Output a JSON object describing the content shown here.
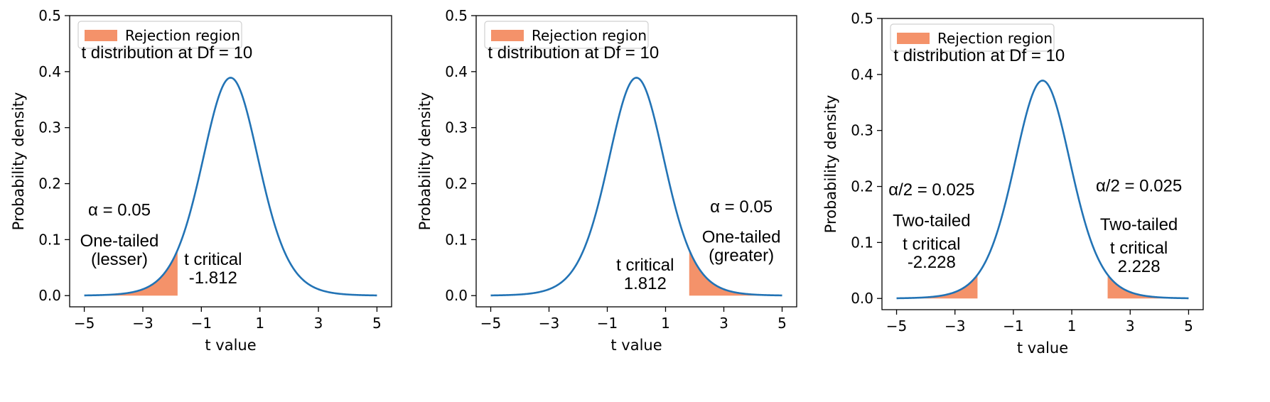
{
  "chart_data": [
    {
      "type": "area",
      "xlabel": "t value",
      "ylabel": "Probability density",
      "xlim": [
        -5.5,
        5.5
      ],
      "ylim": [
        -0.02,
        0.5
      ],
      "xticks": [
        -5,
        -3,
        -1,
        1,
        3,
        5
      ],
      "xtick_labels": [
        "−5",
        "−3",
        "−1",
        "1",
        "3",
        "5"
      ],
      "yticks": [
        0.0,
        0.1,
        0.2,
        0.3,
        0.4,
        0.5
      ],
      "ytick_labels": [
        "0.0",
        "0.1",
        "0.2",
        "0.3",
        "0.4",
        "0.5"
      ],
      "grid": false,
      "legend": {
        "placement": "top-left",
        "entries": [
          {
            "label": "Rejection region",
            "color": "#f4926a"
          }
        ]
      },
      "series": [
        {
          "distribution": "t",
          "df": 10,
          "x_range": [
            -5,
            5
          ],
          "color": "#2273b5"
        }
      ],
      "shaded": [
        {
          "from": -5,
          "to": -1.812,
          "color": "#f4926a"
        }
      ],
      "annotations": [
        {
          "text": "t distribution at Df = 10",
          "x": -5.1,
          "y": 0.424
        },
        {
          "text": "α = 0.05",
          "x": -3.8,
          "y": 0.143
        },
        {
          "text": "One-tailed",
          "x": -3.8,
          "y": 0.088
        },
        {
          "text": "(lesser)",
          "x": -3.8,
          "y": 0.055
        },
        {
          "text": "t critical",
          "x": -0.6,
          "y": 0.055
        },
        {
          "text": "-1.812",
          "x": -0.6,
          "y": 0.022
        }
      ]
    },
    {
      "type": "area",
      "xlabel": "t value",
      "ylabel": "Probability density",
      "xlim": [
        -5.5,
        5.5
      ],
      "ylim": [
        -0.02,
        0.5
      ],
      "xticks": [
        -5,
        -3,
        -1,
        1,
        3,
        5
      ],
      "xtick_labels": [
        "−5",
        "−3",
        "−1",
        "1",
        "3",
        "5"
      ],
      "yticks": [
        0.0,
        0.1,
        0.2,
        0.3,
        0.4,
        0.5
      ],
      "ytick_labels": [
        "0.0",
        "0.1",
        "0.2",
        "0.3",
        "0.4",
        "0.5"
      ],
      "grid": false,
      "legend": {
        "placement": "top-left",
        "entries": [
          {
            "label": "Rejection region",
            "color": "#f4926a"
          }
        ]
      },
      "series": [
        {
          "distribution": "t",
          "df": 10,
          "x_range": [
            -5,
            5
          ],
          "color": "#2273b5"
        }
      ],
      "shaded": [
        {
          "from": 1.812,
          "to": 5,
          "color": "#f4926a"
        }
      ],
      "annotations": [
        {
          "text": "t distribution at Df = 10",
          "x": -5.1,
          "y": 0.424
        },
        {
          "text": "α = 0.05",
          "x": 3.6,
          "y": 0.149
        },
        {
          "text": "One-tailed",
          "x": 3.6,
          "y": 0.095
        },
        {
          "text": "(greater)",
          "x": 3.6,
          "y": 0.062
        },
        {
          "text": "t critical",
          "x": 0.3,
          "y": 0.045
        },
        {
          "text": "1.812",
          "x": 0.3,
          "y": 0.012
        }
      ]
    },
    {
      "type": "area",
      "xlabel": "t value",
      "ylabel": "Probability density",
      "xlim": [
        -5.5,
        5.5
      ],
      "ylim": [
        -0.02,
        0.5
      ],
      "xticks": [
        -5,
        -3,
        -1,
        1,
        3,
        5
      ],
      "xtick_labels": [
        "−5",
        "−3",
        "−1",
        "1",
        "3",
        "5"
      ],
      "yticks": [
        0.0,
        0.1,
        0.2,
        0.3,
        0.4,
        0.5
      ],
      "ytick_labels": [
        "0.0",
        "0.1",
        "0.2",
        "0.3",
        "0.4",
        "0.5"
      ],
      "grid": false,
      "legend": {
        "placement": "top-left",
        "entries": [
          {
            "label": "Rejection region",
            "color": "#f4926a"
          }
        ]
      },
      "series": [
        {
          "distribution": "t",
          "df": 10,
          "x_range": [
            -5,
            5
          ],
          "color": "#2273b5"
        }
      ],
      "shaded": [
        {
          "from": -5,
          "to": -2.228,
          "color": "#f4926a"
        },
        {
          "from": 2.228,
          "to": 5,
          "color": "#f4926a"
        }
      ],
      "annotations": [
        {
          "text": "t distribution at Df = 10",
          "x": -5.1,
          "y": 0.424
        },
        {
          "text": "α/2 = 0.025",
          "x": -3.8,
          "y": 0.184
        },
        {
          "text": "Two-tailed",
          "x": -3.8,
          "y": 0.129
        },
        {
          "text": "t critical",
          "x": -3.8,
          "y": 0.087
        },
        {
          "text": "-2.228",
          "x": -3.8,
          "y": 0.055
        },
        {
          "text": "α/2 = 0.025",
          "x": 3.3,
          "y": 0.191
        },
        {
          "text": "Two-tailed",
          "x": 3.3,
          "y": 0.122
        },
        {
          "text": "t critical",
          "x": 3.3,
          "y": 0.08
        },
        {
          "text": "2.228",
          "x": 3.3,
          "y": 0.047
        }
      ]
    }
  ]
}
